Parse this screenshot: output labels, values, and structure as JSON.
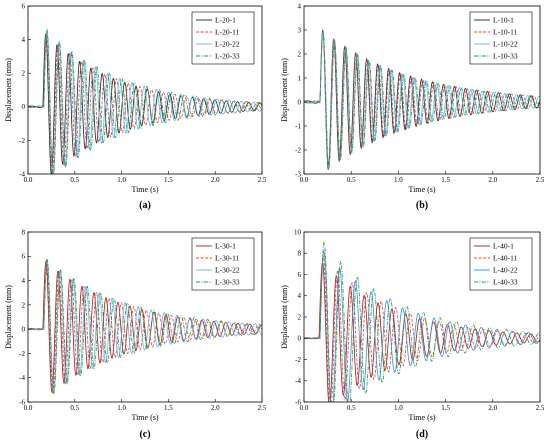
{
  "chart_data": [
    {
      "type": "line",
      "panel_label": "(a)",
      "xlabel": "Time (s)",
      "ylabel": "Displacement (mm)",
      "xlim": [
        0,
        2.5
      ],
      "ylim": [
        -4,
        6
      ],
      "xticks": [
        "0.0",
        "0.5",
        "1.0",
        "1.5",
        "2.0",
        "2.5"
      ],
      "yticks": [
        "-4",
        "-2",
        "0",
        "2",
        "4",
        "6"
      ],
      "legend_position": "top-right",
      "series": [
        {
          "name": "L-20-1",
          "color": "#222222",
          "dash": "solid",
          "start": 0.16,
          "amplitude": 4.5,
          "decay": 1.3,
          "frequency": 8.3
        },
        {
          "name": "L-20-11",
          "color": "#e8413c",
          "dash": "dashed",
          "start": 0.165,
          "amplitude": 4.6,
          "decay": 1.3,
          "frequency": 8.0
        },
        {
          "name": "L-20-22",
          "color": "#6ab0e8",
          "dash": "solid",
          "start": 0.17,
          "amplitude": 4.7,
          "decay": 1.25,
          "frequency": 7.7
        },
        {
          "name": "L-20-33",
          "color": "#1a9a50",
          "dash": "dashdot",
          "start": 0.17,
          "amplitude": 4.8,
          "decay": 1.25,
          "frequency": 7.5
        }
      ]
    },
    {
      "type": "line",
      "panel_label": "(b)",
      "xlabel": "Time (s)",
      "ylabel": "Displacement (mm)",
      "xlim": [
        0,
        2.5
      ],
      "ylim": [
        -3,
        4
      ],
      "xticks": [
        "0.0",
        "0.5",
        "1.0",
        "1.5",
        "2.0",
        "2.5"
      ],
      "yticks": [
        "-3",
        "-2",
        "-1",
        "0",
        "1",
        "2",
        "3",
        "4"
      ],
      "legend_position": "top-right",
      "series": [
        {
          "name": "L-10-1",
          "color": "#222222",
          "dash": "solid",
          "start": 0.17,
          "amplitude": 3.1,
          "decay": 1.1,
          "frequency": 8.6
        },
        {
          "name": "L-10-11",
          "color": "#e8413c",
          "dash": "dashed",
          "start": 0.17,
          "amplitude": 3.1,
          "decay": 1.1,
          "frequency": 8.5
        },
        {
          "name": "L-10-22",
          "color": "#6ab0e8",
          "dash": "solid",
          "start": 0.172,
          "amplitude": 3.05,
          "decay": 1.1,
          "frequency": 8.3
        },
        {
          "name": "L-10-33",
          "color": "#1a9a50",
          "dash": "dashdot",
          "start": 0.172,
          "amplitude": 3.05,
          "decay": 1.1,
          "frequency": 8.2
        }
      ]
    },
    {
      "type": "line",
      "panel_label": "(c)",
      "xlabel": "Time (s)",
      "ylabel": "Displacement (mm)",
      "xlim": [
        0,
        2.5
      ],
      "ylim": [
        -6,
        8
      ],
      "xticks": [
        "0.0",
        "0.5",
        "1.0",
        "1.5",
        "2.0",
        "2.5"
      ],
      "yticks": [
        "-6",
        "-4",
        "-2",
        "0",
        "2",
        "4",
        "6",
        "8"
      ],
      "legend_position": "top-right",
      "series": [
        {
          "name": "L-30-1",
          "color": "#9a1c1c",
          "dash": "solid",
          "start": 0.16,
          "amplitude": 5.8,
          "decay": 1.2,
          "frequency": 7.8
        },
        {
          "name": "L-30-11",
          "color": "#e8413c",
          "dash": "dashed",
          "start": 0.165,
          "amplitude": 5.9,
          "decay": 1.2,
          "frequency": 7.5
        },
        {
          "name": "L-30-22",
          "color": "#6ab0e8",
          "dash": "solid",
          "start": 0.17,
          "amplitude": 5.9,
          "decay": 1.15,
          "frequency": 7.2
        },
        {
          "name": "L-30-33",
          "color": "#1a9a50",
          "dash": "dashdot",
          "start": 0.17,
          "amplitude": 6.0,
          "decay": 1.15,
          "frequency": 7.0
        }
      ]
    },
    {
      "type": "line",
      "panel_label": "(d)",
      "xlabel": "Time (s)",
      "ylabel": "Displacement (mm)",
      "xlim": [
        0,
        2.5
      ],
      "ylim": [
        -6,
        10
      ],
      "xticks": [
        "0.0",
        "0.5",
        "1.0",
        "1.5",
        "2.0",
        "2.5"
      ],
      "yticks": [
        "-6",
        "-4",
        "-2",
        "0",
        "2",
        "4",
        "6",
        "8",
        "10"
      ],
      "legend_position": "top-right",
      "series": [
        {
          "name": "L-40-1",
          "color": "#9a1c1c",
          "dash": "solid",
          "start": 0.16,
          "amplitude": 7.5,
          "decay": 1.3,
          "frequency": 6.8
        },
        {
          "name": "L-40-11",
          "color": "#e8413c",
          "dash": "dashed",
          "start": 0.165,
          "amplitude": 8.2,
          "decay": 1.3,
          "frequency": 6.5
        },
        {
          "name": "L-40-22",
          "color": "#3a8fd8",
          "dash": "solid",
          "start": 0.17,
          "amplitude": 8.6,
          "decay": 1.25,
          "frequency": 6.0
        },
        {
          "name": "L-40-33",
          "color": "#1a9a50",
          "dash": "dashdot",
          "start": 0.17,
          "amplitude": 9.5,
          "decay": 1.25,
          "frequency": 5.7
        }
      ]
    }
  ]
}
